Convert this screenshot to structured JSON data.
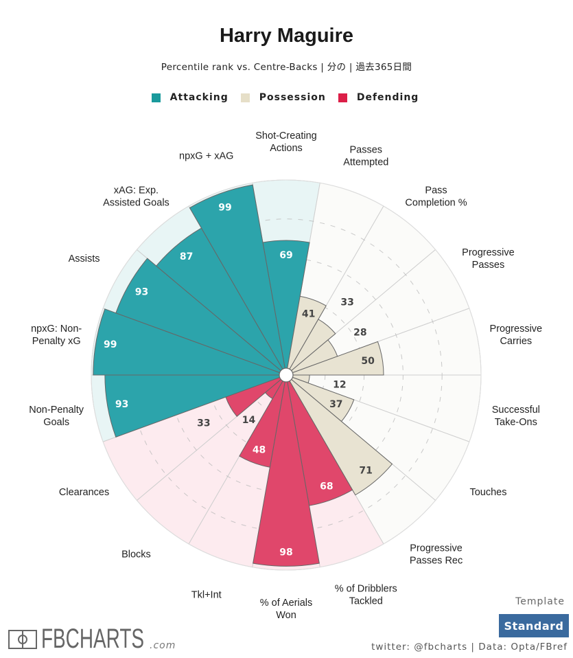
{
  "title": "Harry Maguire",
  "subtitle": "Percentile rank vs. Centre-Backs | 分の | 過去365日間",
  "legend": [
    {
      "label": "Attacking",
      "color": "#1a9a9c"
    },
    {
      "label": "Possession",
      "color": "#e6dfc8"
    },
    {
      "label": "Defending",
      "color": "#dc1f48"
    }
  ],
  "chart_data": {
    "type": "polar-bar",
    "rlim": [
      0,
      100
    ],
    "gridlines": [
      20,
      40,
      60,
      80
    ],
    "group_colors": {
      "Attacking": {
        "fill": "#2ca4ab",
        "bg": "#e8f5f5",
        "text": "#ffffff"
      },
      "Possession": {
        "fill": "#e8e3d2",
        "bg": "#fbfbf9",
        "text": "#444444"
      },
      "Defending": {
        "fill": "#e0476b",
        "bg": "#fdebef",
        "text": "#ffffff"
      }
    },
    "categories": [
      {
        "label": [
          "Shot-Creating",
          "Actions"
        ],
        "group": "Attacking",
        "value": 69
      },
      {
        "label": [
          "Passes",
          "Attempted"
        ],
        "group": "Possession",
        "value": 41
      },
      {
        "label": [
          "Pass",
          "Completion %"
        ],
        "group": "Possession",
        "value": 33
      },
      {
        "label": [
          "Progressive",
          "Passes"
        ],
        "group": "Possession",
        "value": 28
      },
      {
        "label": [
          "Progressive",
          "Carries"
        ],
        "group": "Possession",
        "value": 50
      },
      {
        "label": [
          "Successful",
          "Take-Ons"
        ],
        "group": "Possession",
        "value": 12
      },
      {
        "label": [
          "Touches"
        ],
        "group": "Possession",
        "value": 37
      },
      {
        "label": [
          "Progressive",
          "Passes Rec"
        ],
        "group": "Possession",
        "value": 71
      },
      {
        "label": [
          "% of Dribblers",
          "Tackled"
        ],
        "group": "Defending",
        "value": 68
      },
      {
        "label": [
          "% of Aerials",
          "Won"
        ],
        "group": "Defending",
        "value": 98
      },
      {
        "label": [
          "Tkl+Int"
        ],
        "group": "Defending",
        "value": 48
      },
      {
        "label": [
          "Blocks"
        ],
        "group": "Defending",
        "value": 14
      },
      {
        "label": [
          "Clearances"
        ],
        "group": "Defending",
        "value": 33
      },
      {
        "label": [
          "Non-Penalty",
          "Goals"
        ],
        "group": "Attacking",
        "value": 93
      },
      {
        "label": [
          "npxG: Non-",
          "Penalty xG"
        ],
        "group": "Attacking",
        "value": 99
      },
      {
        "label": [
          "Assists"
        ],
        "group": "Attacking",
        "value": 93
      },
      {
        "label": [
          "xAG: Exp.",
          "Assisted Goals"
        ],
        "group": "Attacking",
        "value": 87
      },
      {
        "label": [
          "npxG + xAG"
        ],
        "group": "Attacking",
        "value": 99
      }
    ]
  },
  "footer": {
    "template_label": "Template",
    "template_value": "Standard",
    "credit": "twitter: @fbcharts | Data: Opta/FBref",
    "logo_text": "FBCHARTS",
    "logo_suffix": ".com"
  }
}
